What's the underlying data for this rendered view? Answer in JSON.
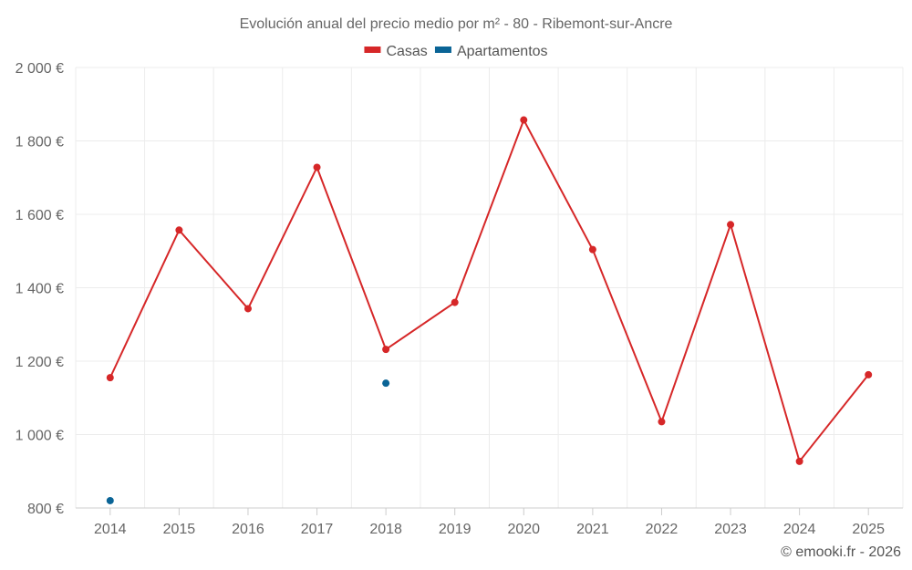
{
  "chart_data": {
    "type": "line",
    "title": "Evolución anual del precio medio por m² - 80 - Ribemont-sur-Ancre",
    "categories": [
      "2014",
      "2015",
      "2016",
      "2017",
      "2018",
      "2019",
      "2020",
      "2021",
      "2022",
      "2023",
      "2024",
      "2025"
    ],
    "ylim": [
      800,
      2000
    ],
    "yticks": [
      800,
      1000,
      1200,
      1400,
      1600,
      1800,
      2000
    ],
    "ytick_labels": [
      "800 €",
      "1 000 €",
      "1 200 €",
      "1 400 €",
      "1 600 €",
      "1 800 €",
      "2 000 €"
    ],
    "legend_position": "top-center",
    "grid": true,
    "series": [
      {
        "name": "Casas",
        "color": "#d62728",
        "values": [
          1155,
          1557,
          1343,
          1728,
          1232,
          1360,
          1857,
          1504,
          1035,
          1572,
          927,
          1163
        ]
      },
      {
        "name": "Apartamentos",
        "color": "#0a6496",
        "values": [
          820,
          null,
          null,
          null,
          1140,
          null,
          null,
          null,
          null,
          null,
          null,
          null
        ]
      }
    ],
    "credit": "© emooki.fr - 2026"
  }
}
